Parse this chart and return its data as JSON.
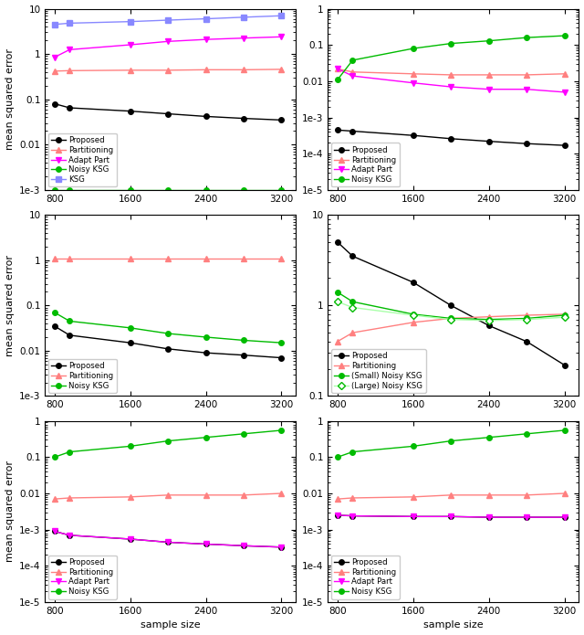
{
  "x": [
    800,
    960,
    1600,
    2000,
    2400,
    2800,
    3200
  ],
  "panel_00": {
    "proposed": [
      0.08,
      0.065,
      0.055,
      0.048,
      0.042,
      0.038,
      0.035
    ],
    "partitioning": [
      0.42,
      0.43,
      0.44,
      0.44,
      0.45,
      0.45,
      0.46
    ],
    "adapt_part": [
      0.85,
      1.25,
      1.6,
      1.9,
      2.1,
      2.25,
      2.4
    ],
    "noisy_ksg": [
      0.001,
      0.001,
      0.001,
      0.001,
      0.001,
      0.001,
      0.001
    ],
    "ksg": [
      4.5,
      4.8,
      5.2,
      5.6,
      6.0,
      6.5,
      7.0
    ],
    "ylim": [
      0.001,
      10
    ],
    "legend": [
      "Proposed",
      "Partitioning",
      "Adapt Part",
      "Noisy KSG",
      "KSG"
    ]
  },
  "panel_01": {
    "proposed": [
      0.00045,
      0.00042,
      0.00032,
      0.00026,
      0.00022,
      0.00019,
      0.00017
    ],
    "partitioning": [
      0.022,
      0.018,
      0.016,
      0.015,
      0.015,
      0.015,
      0.016
    ],
    "adapt_part": [
      0.022,
      0.014,
      0.009,
      0.007,
      0.006,
      0.006,
      0.005
    ],
    "noisy_ksg": [
      0.011,
      0.038,
      0.08,
      0.11,
      0.13,
      0.16,
      0.18
    ],
    "ylim": [
      1e-05,
      1
    ],
    "legend": [
      "Proposed",
      "Partitioning",
      "Adapt Part",
      "Noisy KSG"
    ]
  },
  "panel_10": {
    "proposed": [
      0.035,
      0.022,
      0.015,
      0.011,
      0.009,
      0.008,
      0.007
    ],
    "partitioning": [
      1.1,
      1.1,
      1.1,
      1.1,
      1.1,
      1.1,
      1.1
    ],
    "noisy_ksg": [
      0.07,
      0.045,
      0.032,
      0.024,
      0.02,
      0.017,
      0.015
    ],
    "ylim": [
      0.001,
      10
    ],
    "legend": [
      "Proposed",
      "Partitioning",
      "Noisy KSG"
    ]
  },
  "panel_11": {
    "proposed": [
      5.0,
      3.5,
      1.8,
      1.0,
      0.6,
      0.4,
      0.22
    ],
    "partitioning": [
      0.4,
      0.5,
      0.65,
      0.72,
      0.75,
      0.78,
      0.8
    ],
    "small_noisy_ksg": [
      1.4,
      1.1,
      0.8,
      0.72,
      0.7,
      0.72,
      0.78
    ],
    "large_noisy_ksg": [
      1.1,
      0.95,
      0.78,
      0.7,
      0.68,
      0.7,
      0.74
    ],
    "ylim": [
      0.1,
      10
    ],
    "legend": [
      "Proposed",
      "Partitioning",
      "(Small) Noisy KSG",
      "(Large) Noisy KSG"
    ]
  },
  "panel_20": {
    "proposed": [
      0.0009,
      0.0007,
      0.00055,
      0.00045,
      0.0004,
      0.00036,
      0.00033
    ],
    "partitioning": [
      0.007,
      0.0075,
      0.008,
      0.009,
      0.009,
      0.009,
      0.01
    ],
    "adapt_part": [
      0.0009,
      0.0007,
      0.00055,
      0.00045,
      0.0004,
      0.00036,
      0.00033
    ],
    "noisy_ksg": [
      0.1,
      0.14,
      0.2,
      0.28,
      0.35,
      0.44,
      0.55
    ],
    "ylim": [
      1e-05,
      1
    ],
    "legend": [
      "Proposed",
      "Partitioning",
      "Adapt Part",
      "Noisy KSG"
    ]
  },
  "panel_21": {
    "proposed": [
      0.0025,
      0.0024,
      0.0023,
      0.0023,
      0.0022,
      0.0022,
      0.0022
    ],
    "partitioning": [
      0.007,
      0.0075,
      0.008,
      0.009,
      0.009,
      0.009,
      0.01
    ],
    "adapt_part": [
      0.0025,
      0.0024,
      0.0023,
      0.0023,
      0.0022,
      0.0022,
      0.0022
    ],
    "noisy_ksg": [
      0.1,
      0.14,
      0.2,
      0.28,
      0.35,
      0.44,
      0.55
    ],
    "ylim": [
      1e-05,
      1
    ],
    "legend": [
      "Proposed",
      "Partitioning",
      "Adapt Part",
      "Noisy KSG"
    ]
  },
  "colors": {
    "proposed": "#000000",
    "partitioning": "#ff8080",
    "adapt_part": "#ff00ff",
    "noisy_ksg": "#00bb00",
    "ksg": "#8888ff",
    "small_noisy_ksg": "#00bb00",
    "large_noisy_ksg": "#aaffaa"
  },
  "xticks": [
    800,
    1600,
    2400,
    3200
  ],
  "ylabel": "mean squared error",
  "xlabel": "sample size"
}
